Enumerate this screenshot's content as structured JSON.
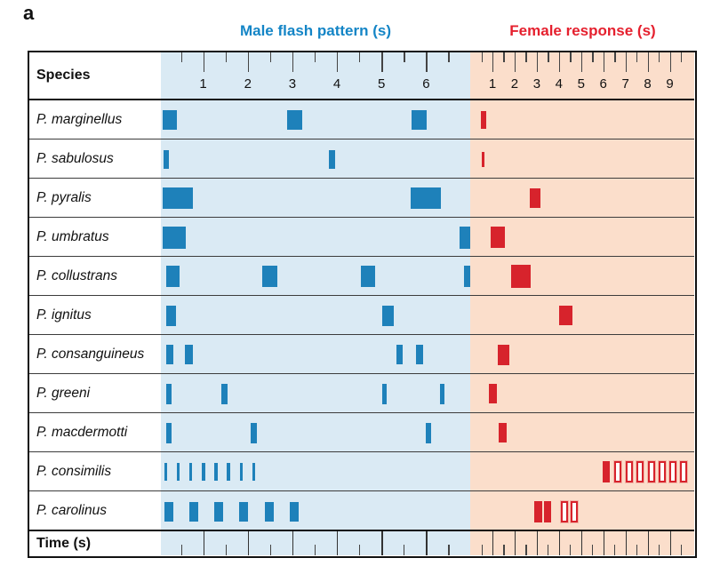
{
  "figure_label": "a",
  "header": {
    "species_label": "Species",
    "time_label": "Time (s)"
  },
  "colors": {
    "male_bar": "#1e81ba",
    "male_bg": "#daeaf4",
    "male_title": "#1485c6",
    "female_bar": "#d7232c",
    "female_bg": "#fbdecb",
    "female_title": "#e5202e"
  },
  "chart_data": {
    "type": "event-timeline",
    "title": "Firefly male flash patterns and female response delays by Photinus species",
    "x_unit": "seconds",
    "panels": [
      {
        "id": "male",
        "label": "Male flash pattern (s)",
        "xlim": [
          0.05,
          6.99
        ],
        "major_ticks": [
          1,
          2,
          3,
          4,
          5,
          6
        ],
        "minor_ticks": [
          0.5,
          1.5,
          2.5,
          3.5,
          4.5,
          5.5,
          6.5
        ]
      },
      {
        "id": "female",
        "label": "Female response (s)",
        "xlim": [
          0.0,
          10.1
        ],
        "major_ticks": [
          1,
          2,
          3,
          4,
          5,
          6,
          7,
          8,
          9
        ],
        "minor_ticks": [
          0.5,
          1.5,
          2.5,
          3.5,
          4.5,
          5.5,
          6.5,
          7.5,
          8.5,
          9.5
        ]
      }
    ],
    "species": [
      {
        "name": "P. marginellus",
        "male_h": 22,
        "female_h": 20,
        "male": [
          {
            "t": 0.08,
            "d": 0.32
          },
          {
            "t": 2.89,
            "d": 0.34
          },
          {
            "t": 5.68,
            "d": 0.34
          }
        ],
        "female": [
          {
            "t": 0.49,
            "d": 0.22,
            "style": "solid"
          }
        ]
      },
      {
        "name": "P. sabulosus",
        "male_h": 21,
        "female_h": 17,
        "male": [
          {
            "t": 0.1,
            "d": 0.13
          },
          {
            "t": 3.82,
            "d": 0.14
          }
        ],
        "female": [
          {
            "t": 0.51,
            "d": 0.13,
            "style": "solid"
          }
        ]
      },
      {
        "name": "P. pyralis",
        "male_h": 24,
        "female_h": 22,
        "male": [
          {
            "t": 0.08,
            "d": 0.69
          },
          {
            "t": 5.65,
            "d": 0.68
          }
        ],
        "female": [
          {
            "t": 2.67,
            "d": 0.49,
            "style": "solid"
          }
        ]
      },
      {
        "name": "P. umbratus",
        "male_h": 25,
        "female_h": 24,
        "male": [
          {
            "t": 0.08,
            "d": 0.52
          },
          {
            "t": 6.74,
            "d": 0.26
          }
        ],
        "female": [
          {
            "t": 0.91,
            "d": 0.64,
            "style": "solid"
          }
        ]
      },
      {
        "name": "P. collustrans",
        "male_h": 24,
        "female_h": 26,
        "male": [
          {
            "t": 0.16,
            "d": 0.3
          },
          {
            "t": 2.33,
            "d": 0.34
          },
          {
            "t": 4.54,
            "d": 0.32
          },
          {
            "t": 6.85,
            "d": 0.15
          }
        ],
        "female": [
          {
            "t": 1.85,
            "d": 0.88,
            "style": "solid"
          }
        ]
      },
      {
        "name": "P. ignitus",
        "male_h": 23,
        "female_h": 22,
        "male": [
          {
            "t": 0.16,
            "d": 0.22
          },
          {
            "t": 5.01,
            "d": 0.26
          }
        ],
        "female": [
          {
            "t": 4.01,
            "d": 0.6,
            "style": "solid"
          }
        ]
      },
      {
        "name": "P. consanguineus",
        "male_h": 22,
        "female_h": 23,
        "male": [
          {
            "t": 0.16,
            "d": 0.16
          },
          {
            "t": 0.58,
            "d": 0.18
          },
          {
            "t": 5.33,
            "d": 0.15
          },
          {
            "t": 5.78,
            "d": 0.16
          }
        ],
        "female": [
          {
            "t": 1.25,
            "d": 0.51,
            "style": "solid"
          }
        ]
      },
      {
        "name": "P. greeni",
        "male_h": 23,
        "female_h": 22,
        "male": [
          {
            "t": 0.16,
            "d": 0.12
          },
          {
            "t": 1.41,
            "d": 0.14
          },
          {
            "t": 5.01,
            "d": 0.1
          },
          {
            "t": 6.31,
            "d": 0.1
          }
        ],
        "female": [
          {
            "t": 0.83,
            "d": 0.38,
            "style": "solid"
          }
        ]
      },
      {
        "name": "P. macdermotti",
        "male_h": 23,
        "female_h": 22,
        "male": [
          {
            "t": 0.16,
            "d": 0.12
          },
          {
            "t": 2.07,
            "d": 0.14
          },
          {
            "t": 6.0,
            "d": 0.12
          }
        ],
        "female": [
          {
            "t": 1.27,
            "d": 0.38,
            "style": "solid"
          }
        ]
      },
      {
        "name": "P. consimilis",
        "male_h": 20,
        "female_h": 24,
        "male": [
          {
            "t": 0.12,
            "d": 0.07
          },
          {
            "t": 0.4,
            "d": 0.07
          },
          {
            "t": 0.68,
            "d": 0.07
          },
          {
            "t": 0.97,
            "d": 0.07
          },
          {
            "t": 1.25,
            "d": 0.07
          },
          {
            "t": 1.53,
            "d": 0.07
          },
          {
            "t": 1.82,
            "d": 0.07
          },
          {
            "t": 2.1,
            "d": 0.07
          }
        ],
        "female": [
          {
            "t": 5.95,
            "d": 0.35,
            "style": "solid"
          },
          {
            "t": 6.5,
            "d": 0.32,
            "style": "outline"
          },
          {
            "t": 7.0,
            "d": 0.32,
            "style": "outline"
          },
          {
            "t": 7.5,
            "d": 0.32,
            "style": "outline"
          },
          {
            "t": 8.0,
            "d": 0.32,
            "style": "outline"
          },
          {
            "t": 8.48,
            "d": 0.32,
            "style": "outline"
          },
          {
            "t": 8.97,
            "d": 0.32,
            "style": "outline"
          },
          {
            "t": 9.45,
            "d": 0.32,
            "style": "outline"
          }
        ]
      },
      {
        "name": "P. carolinus",
        "male_h": 22,
        "female_h": 24,
        "male": [
          {
            "t": 0.12,
            "d": 0.2
          },
          {
            "t": 0.68,
            "d": 0.2
          },
          {
            "t": 1.25,
            "d": 0.2
          },
          {
            "t": 1.81,
            "d": 0.2
          },
          {
            "t": 2.38,
            "d": 0.2
          },
          {
            "t": 2.94,
            "d": 0.2
          }
        ],
        "female": [
          {
            "t": 2.9,
            "d": 0.33,
            "style": "solid"
          },
          {
            "t": 3.31,
            "d": 0.33,
            "style": "solid"
          },
          {
            "t": 4.1,
            "d": 0.32,
            "style": "outline"
          },
          {
            "t": 4.51,
            "d": 0.32,
            "style": "outline"
          }
        ]
      }
    ]
  }
}
